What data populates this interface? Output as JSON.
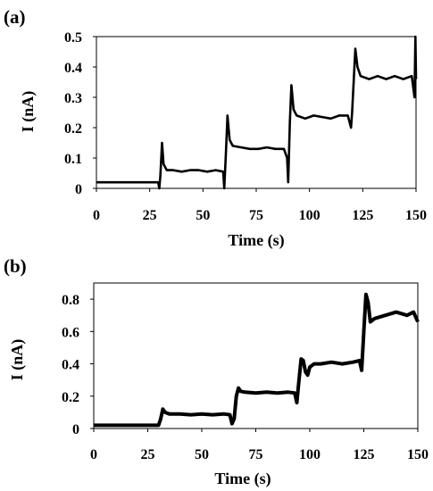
{
  "chart_data": [
    {
      "panel_label": "(a)",
      "type": "line",
      "xlabel": "Time (s)",
      "ylabel": "I (nA)",
      "xlim": [
        0,
        150
      ],
      "ylim": [
        0,
        0.5
      ],
      "xticks": [
        "0",
        "25",
        "50",
        "75",
        "100",
        "125",
        "150"
      ],
      "yticks": [
        "0",
        "0.1",
        "0.2",
        "0.3",
        "0.4",
        "0.5"
      ],
      "grid": false,
      "legend": "none",
      "line_color": "#000000",
      "series": [
        {
          "x": [
            0,
            10,
            20,
            29,
            29.5,
            30,
            30.8,
            31.5,
            33,
            36,
            40,
            44,
            48,
            52,
            56,
            59.5,
            60,
            60.8,
            61.5,
            62.5,
            64,
            68,
            72,
            76,
            80,
            84,
            88,
            89.5,
            90,
            90.8,
            91.5,
            92.5,
            94,
            98,
            102,
            106,
            110,
            114,
            118,
            119.5,
            120,
            120.8,
            121.5,
            122.5,
            124,
            128,
            132,
            136,
            140,
            144,
            148,
            149.3,
            149.7,
            150
          ],
          "y": [
            0.02,
            0.02,
            0.02,
            0.02,
            0.0,
            0.04,
            0.15,
            0.08,
            0.06,
            0.06,
            0.055,
            0.06,
            0.06,
            0.055,
            0.06,
            0.055,
            0.0,
            0.12,
            0.24,
            0.16,
            0.14,
            0.135,
            0.13,
            0.13,
            0.135,
            0.13,
            0.13,
            0.1,
            0.02,
            0.22,
            0.34,
            0.26,
            0.24,
            0.23,
            0.24,
            0.235,
            0.23,
            0.24,
            0.24,
            0.2,
            0.25,
            0.36,
            0.46,
            0.4,
            0.37,
            0.36,
            0.37,
            0.36,
            0.37,
            0.36,
            0.37,
            0.3,
            0.5,
            0.36
          ]
        }
      ]
    },
    {
      "panel_label": "(b)",
      "type": "line",
      "xlabel": "Time (s)",
      "ylabel": "I (nA)",
      "xlim": [
        0,
        150
      ],
      "ylim": [
        0,
        0.9
      ],
      "xticks": [
        "0",
        "25",
        "50",
        "75",
        "100",
        "125",
        "150"
      ],
      "yticks": [
        "0",
        "0.2",
        "0.4",
        "0.6",
        "0.8"
      ],
      "grid": false,
      "legend": "none",
      "line_color": "#000000",
      "series": [
        {
          "x": [
            0,
            10,
            20,
            28,
            30,
            31,
            32,
            33,
            35,
            40,
            45,
            50,
            55,
            60,
            63,
            64,
            65,
            66,
            67,
            68,
            70,
            75,
            80,
            85,
            90,
            93,
            94,
            95,
            96,
            97,
            98,
            99,
            100,
            102,
            105,
            110,
            115,
            120,
            123,
            124,
            125,
            126,
            127,
            128,
            130,
            135,
            140,
            145,
            148,
            150
          ],
          "y": [
            0.02,
            0.02,
            0.02,
            0.02,
            0.02,
            0.06,
            0.12,
            0.1,
            0.09,
            0.09,
            0.085,
            0.09,
            0.085,
            0.09,
            0.085,
            0.03,
            0.06,
            0.2,
            0.25,
            0.23,
            0.225,
            0.22,
            0.225,
            0.22,
            0.225,
            0.22,
            0.16,
            0.3,
            0.43,
            0.42,
            0.35,
            0.33,
            0.38,
            0.4,
            0.4,
            0.41,
            0.4,
            0.41,
            0.42,
            0.36,
            0.6,
            0.83,
            0.78,
            0.66,
            0.68,
            0.7,
            0.72,
            0.7,
            0.72,
            0.66
          ]
        }
      ]
    }
  ]
}
